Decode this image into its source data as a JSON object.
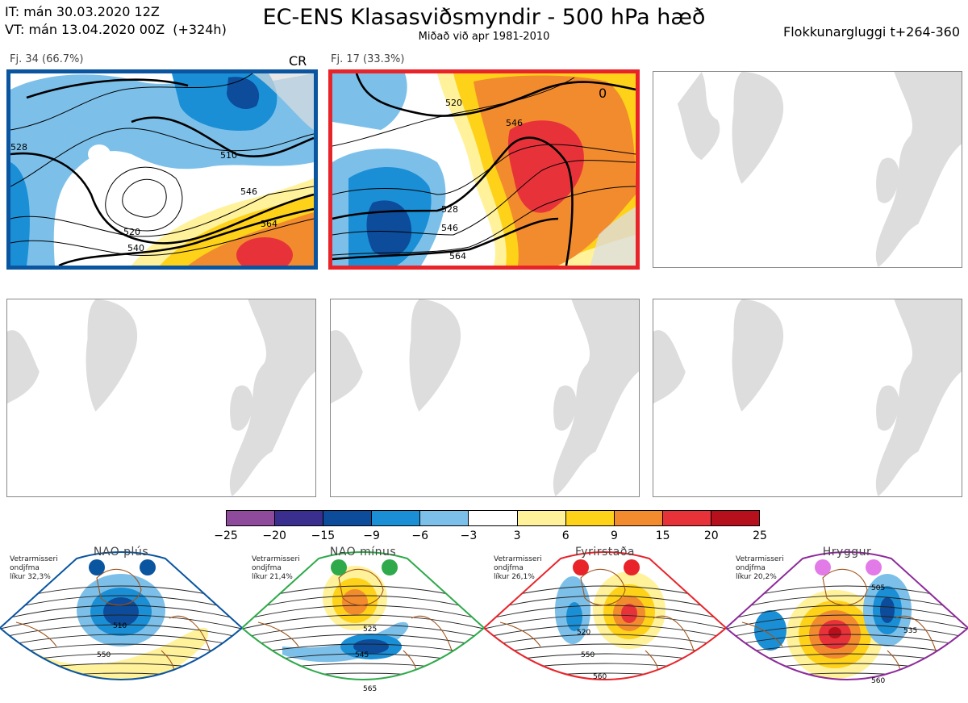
{
  "header": {
    "it_line": "IT: mán 30.03.2020 12Z",
    "vt_line": "VT: mán 13.04.2020 00Z  (+324h)",
    "title": "EC-ENS Klasasviðsmyndir - 500 hPa hæð",
    "subtitle": "Miðað við apr 1981-2010",
    "window": "Flokkunargluggi t+264-360"
  },
  "panels": [
    {
      "label": "Fj. 34 (66.7%)",
      "tag": "CR",
      "contours": [
        "510",
        "520",
        "528",
        "546",
        "564",
        "540"
      ],
      "frame_color": "#0a55a0"
    },
    {
      "label": "Fj. 17 (33.3%)",
      "tag": "",
      "contours": [
        "520",
        "546",
        "528",
        "546",
        "564",
        "0"
      ],
      "frame_color": "#e8242a"
    }
  ],
  "colorbar": {
    "colors": [
      "#8e4b9b",
      "#3a2f8f",
      "#0c4c9a",
      "#1a8fd6",
      "#7cc0ea",
      "#ffffff",
      "#fff29b",
      "#ffd21a",
      "#f28b2e",
      "#e8323a",
      "#b5101c"
    ],
    "ticks": [
      "−25",
      "−20",
      "−15",
      "−9",
      "−6",
      "−3",
      "3",
      "6",
      "9",
      "15",
      "20",
      "25"
    ]
  },
  "regimes": [
    {
      "name": "NAO plús",
      "info": [
        "Vetrarmisseri",
        "ondjfma",
        "líkur 32,3%"
      ],
      "color": "#0a55a0",
      "dot_color": "#0a55a0",
      "contours": [
        "510",
        "550"
      ]
    },
    {
      "name": "NAO mínus",
      "info": [
        "Vetrarmisseri",
        "ondjfma",
        "líkur 21,4%"
      ],
      "color": "#2eaa4a",
      "dot_color": "#2eaa4a",
      "contours": [
        "525",
        "545",
        "565"
      ]
    },
    {
      "name": "Fyrirstaða",
      "info": [
        "Vetrarmisseri",
        "ondjfma",
        "líkur 26,1%"
      ],
      "color": "#e8242a",
      "dot_color": "#e8242a",
      "contours": [
        "520",
        "550",
        "560"
      ]
    },
    {
      "name": "Hryggur",
      "info": [
        "Vetrarmisseri",
        "ondjfma",
        "líkur 20,2%"
      ],
      "color": "#8e2a9b",
      "dot_color": "#e27be8",
      "contours": [
        "505",
        "535",
        "560"
      ]
    }
  ]
}
